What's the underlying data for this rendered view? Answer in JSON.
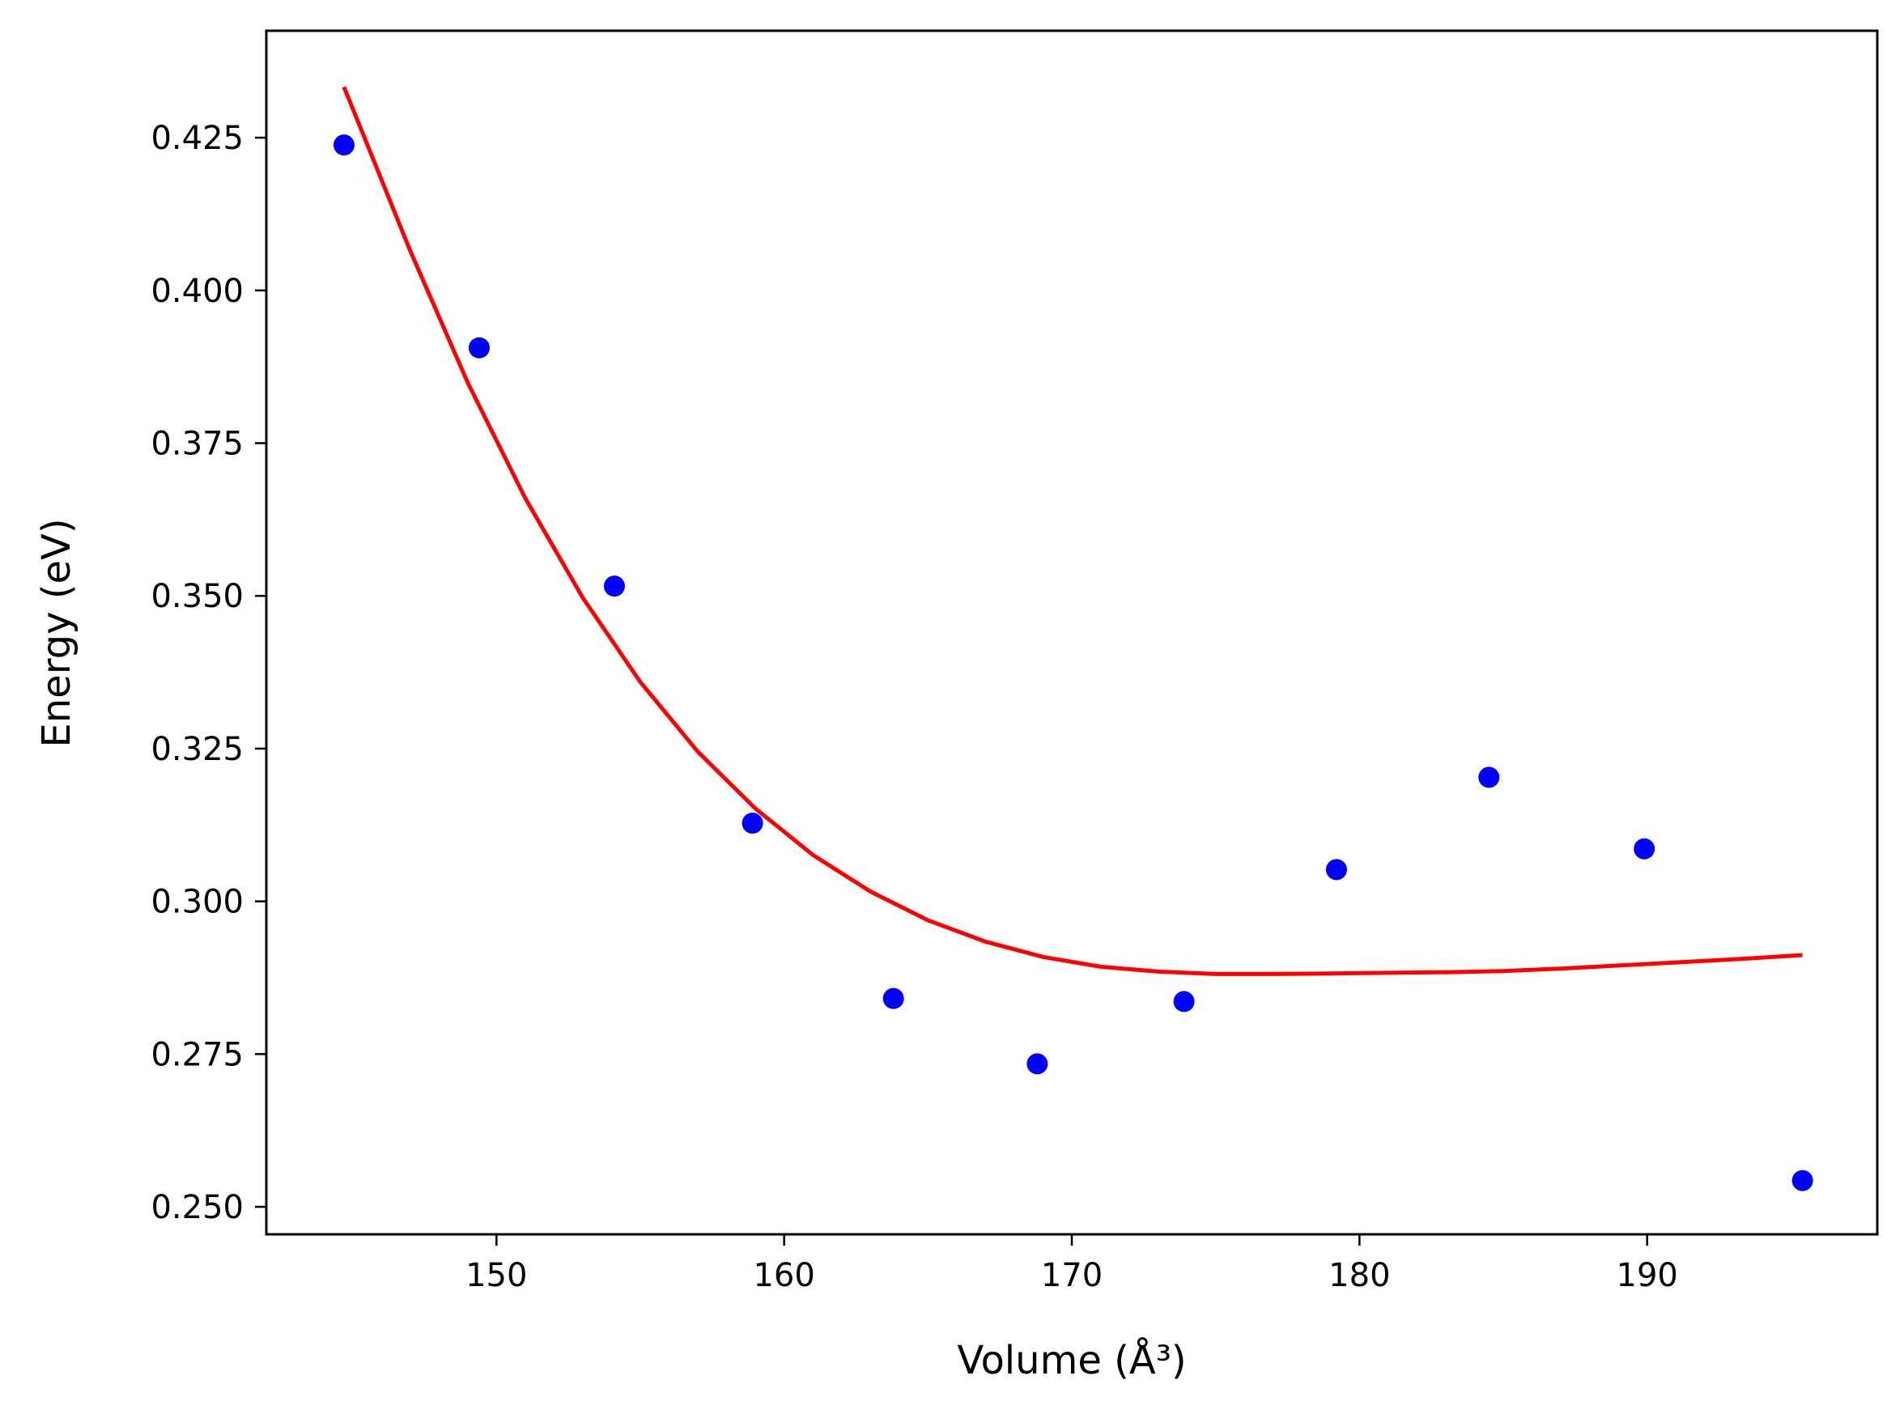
{
  "chart_data": {
    "type": "scatter",
    "xlabel": "Volume",
    "xlabel_unit": "(Å³)",
    "ylabel": "Energy",
    "ylabel_unit": "(eV)",
    "xlim": [
      142,
      198
    ],
    "ylim": [
      0.2455,
      0.4425
    ],
    "xticks": [
      150,
      160,
      170,
      180,
      190
    ],
    "yticks": [
      0.25,
      0.275,
      0.3,
      0.325,
      0.35,
      0.375,
      0.4,
      0.425
    ],
    "xtick_labels": [
      "150",
      "160",
      "170",
      "180",
      "190"
    ],
    "ytick_labels": [
      "0.250",
      "0.275",
      "0.300",
      "0.325",
      "0.350",
      "0.375",
      "0.400",
      "0.425"
    ],
    "grid": false,
    "series": [
      {
        "kind": "scatter",
        "color": "#0000ff",
        "x": [
          144.7,
          149.4,
          154.1,
          158.9,
          163.8,
          168.8,
          173.9,
          179.2,
          184.5,
          189.9,
          195.4
        ],
        "y": [
          0.4238,
          0.3906,
          0.3516,
          0.3128,
          0.2841,
          0.2734,
          0.2836,
          0.3052,
          0.3203,
          0.3086,
          0.2543
        ]
      },
      {
        "kind": "line",
        "color": "#ff0000",
        "x": [
          144.7,
          147,
          149,
          151,
          153,
          155,
          157,
          159,
          161,
          163,
          165,
          167,
          169,
          171,
          173,
          175,
          177,
          179,
          181,
          183,
          185,
          187,
          189,
          191,
          193,
          195.4
        ],
        "y": [
          0.4333,
          0.4065,
          0.3849,
          0.366,
          0.3497,
          0.3359,
          0.3245,
          0.3152,
          0.3076,
          0.3016,
          0.2969,
          0.2934,
          0.2909,
          0.2893,
          0.2885,
          0.2881,
          0.2881,
          0.2882,
          0.2883,
          0.2884,
          0.2886,
          0.289,
          0.2895,
          0.29,
          0.2905,
          0.2912
        ]
      }
    ]
  }
}
